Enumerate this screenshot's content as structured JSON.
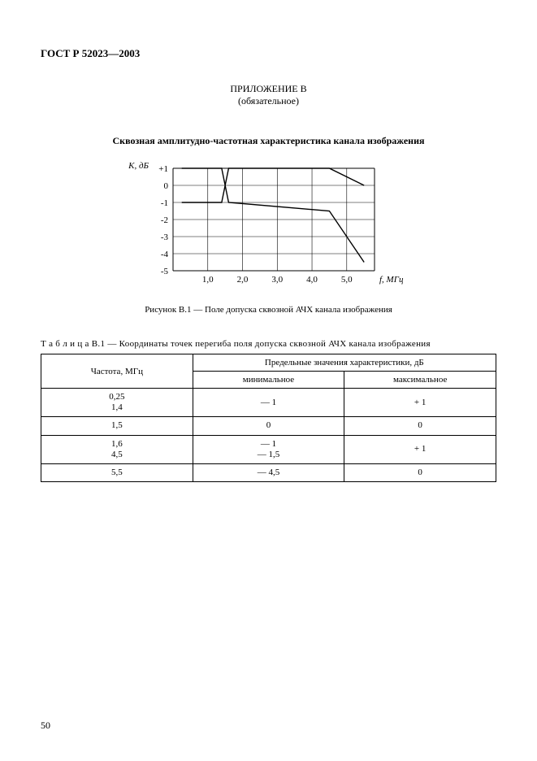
{
  "doc_id": "ГОСТ Р 52023—2003",
  "appendix": {
    "title": "ПРИЛОЖЕНИЕ В",
    "note": "(обязательное)"
  },
  "section_title": "Сквозная амплитудно-частотная характеристика канала изображения",
  "figure_caption": "Рисунок В.1 — Поле допуска сквозной АЧХ канала изображения",
  "chart": {
    "type": "line",
    "y_axis_label": "K, дБ",
    "x_axis_label": "f, МГц",
    "y_ticks": [
      "+1",
      "0",
      "-1",
      "-2",
      "-3",
      "-4",
      "-5"
    ],
    "y_values": [
      1,
      0,
      -1,
      -2,
      -3,
      -4,
      -5
    ],
    "x_ticks": [
      "1,0",
      "2,0",
      "3,0",
      "4,0",
      "5,0"
    ],
    "x_values": [
      1,
      2,
      3,
      4,
      5
    ],
    "xlim": [
      0,
      5.8
    ],
    "ylim": [
      -5,
      1
    ],
    "grid_color": "#000000",
    "background_color": "#ffffff",
    "line_color": "#000000",
    "line_width": 1.4,
    "grid_line_width": 0.6,
    "upper_curve": [
      {
        "x": 0.25,
        "y": 1
      },
      {
        "x": 1.4,
        "y": 1
      },
      {
        "x": 1.5,
        "y": 0
      },
      {
        "x": 1.6,
        "y": 1
      },
      {
        "x": 4.5,
        "y": 1
      },
      {
        "x": 5.5,
        "y": 0
      }
    ],
    "lower_curve": [
      {
        "x": 0.25,
        "y": -1
      },
      {
        "x": 1.4,
        "y": -1
      },
      {
        "x": 1.5,
        "y": 0
      },
      {
        "x": 1.6,
        "y": -1
      },
      {
        "x": 4.5,
        "y": -1.5
      },
      {
        "x": 5.5,
        "y": -4.5
      }
    ]
  },
  "table": {
    "caption": "Т а б л и ц а  В.1 — Координаты точек перегиба поля допуска сквозной АЧХ канала изображения",
    "col_freq_header": "Частота, МГц",
    "col_span_header": "Предельные значения характеристики, дБ",
    "col_min_header": "минимальное",
    "col_max_header": "максимальное",
    "rows": [
      {
        "freq": "0,25\n1,4",
        "min": "— 1",
        "max": "+ 1"
      },
      {
        "freq": "1,5",
        "min": "0",
        "max": "0"
      },
      {
        "freq": "1,6\n4,5",
        "min": "— 1\n— 1,5",
        "max": "+ 1"
      },
      {
        "freq": "5,5",
        "min": "— 4,5",
        "max": "0"
      }
    ]
  },
  "page_number": "50"
}
